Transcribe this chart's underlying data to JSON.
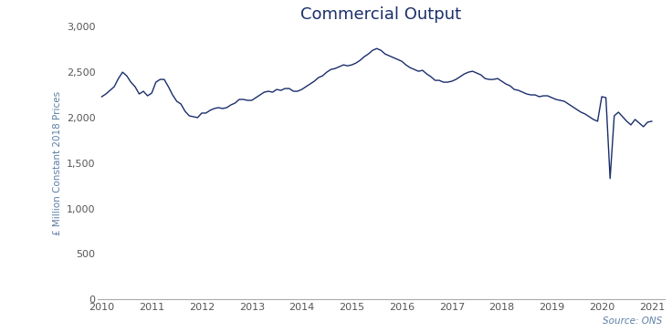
{
  "title": "Commercial Output",
  "ylabel": "£ Million Constant 2018 Prices",
  "source": "Source: ONS",
  "line_color": "#1a2e6b",
  "background_color": "#ffffff",
  "ylim": [
    0,
    3000
  ],
  "yticks": [
    0,
    500,
    1000,
    1500,
    2000,
    2500,
    3000
  ],
  "xlim": [
    2009.92,
    2021.25
  ],
  "xticks": [
    2010,
    2011,
    2012,
    2013,
    2014,
    2015,
    2016,
    2017,
    2018,
    2019,
    2020,
    2021
  ],
  "values": [
    2230,
    2260,
    2300,
    2340,
    2430,
    2500,
    2460,
    2390,
    2340,
    2260,
    2290,
    2240,
    2270,
    2390,
    2420,
    2420,
    2340,
    2250,
    2180,
    2150,
    2070,
    2020,
    2010,
    2000,
    2050,
    2050,
    2080,
    2100,
    2110,
    2100,
    2110,
    2140,
    2160,
    2200,
    2200,
    2190,
    2190,
    2220,
    2250,
    2280,
    2290,
    2280,
    2310,
    2300,
    2320,
    2320,
    2290,
    2290,
    2310,
    2340,
    2370,
    2400,
    2440,
    2460,
    2500,
    2530,
    2540,
    2560,
    2580,
    2570,
    2580,
    2600,
    2630,
    2670,
    2700,
    2740,
    2760,
    2740,
    2700,
    2680,
    2660,
    2640,
    2620,
    2580,
    2550,
    2530,
    2510,
    2520,
    2480,
    2450,
    2410,
    2410,
    2390,
    2390,
    2400,
    2420,
    2450,
    2480,
    2500,
    2510,
    2490,
    2470,
    2430,
    2420,
    2420,
    2430,
    2400,
    2370,
    2350,
    2310,
    2300,
    2280,
    2260,
    2250,
    2250,
    2230,
    2240,
    2240,
    2220,
    2200,
    2190,
    2180,
    2150,
    2120,
    2090,
    2060,
    2040,
    2010,
    1980,
    1960,
    2230,
    2220,
    1330,
    2020,
    2060,
    2010,
    1960,
    1920,
    1980,
    1940,
    1900,
    1950,
    1960
  ],
  "n_months": 133,
  "start_year": 2010,
  "start_month": 1
}
